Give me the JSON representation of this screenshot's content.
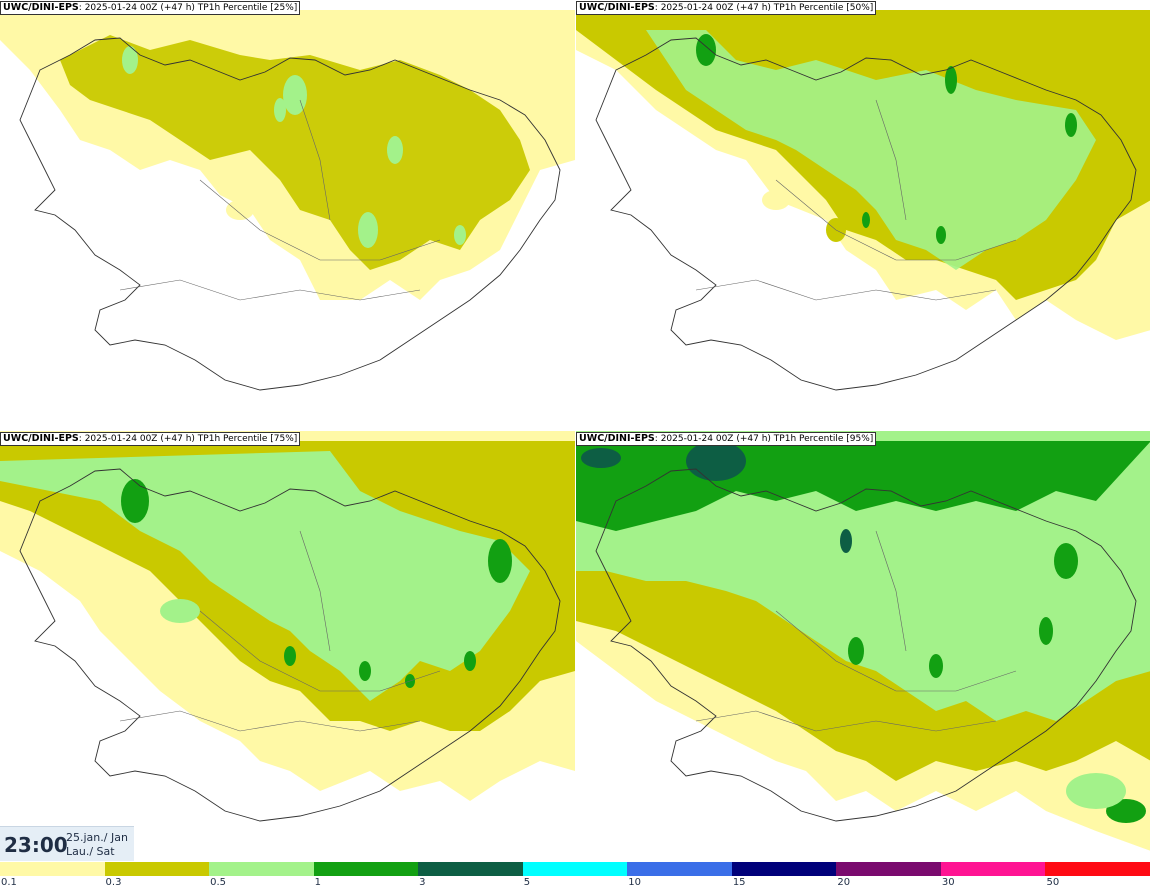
{
  "panels": [
    {
      "label": "UWC/DINI-EPS",
      "info": "2025-01-24 00Z (+47 h)",
      "product": "TP1h Percentile [25%]"
    },
    {
      "label": "UWC/DINI-EPS",
      "info": "2025-01-24 00Z (+47 h)",
      "product": "TP1h Percentile [50%]"
    },
    {
      "label": "UWC/DINI-EPS",
      "info": "2025-01-24 00Z (+47 h)",
      "product": "TP1h Percentile [75%]"
    },
    {
      "label": "UWC/DINI-EPS",
      "info": "2025-01-24 00Z (+47 h)",
      "product": "TP1h Percentile [95%]"
    }
  ],
  "clock": {
    "time": "23:00",
    "date_line1": "25.jan./ Jan",
    "date_line2": "Lau./ Sat"
  },
  "colorbar": {
    "labels": [
      "0.1",
      "0.3",
      "0.5",
      "1",
      "3",
      "5",
      "10",
      "15",
      "20",
      "30",
      "50"
    ],
    "colors": [
      "#fff9a6",
      "#c9c900",
      "#a3f28a",
      "#12a012",
      "#0d5e44",
      "#00ffff",
      "#3a6ee8",
      "#00007a",
      "#7a0a6e",
      "#ff1493",
      "#ff0a14"
    ]
  }
}
